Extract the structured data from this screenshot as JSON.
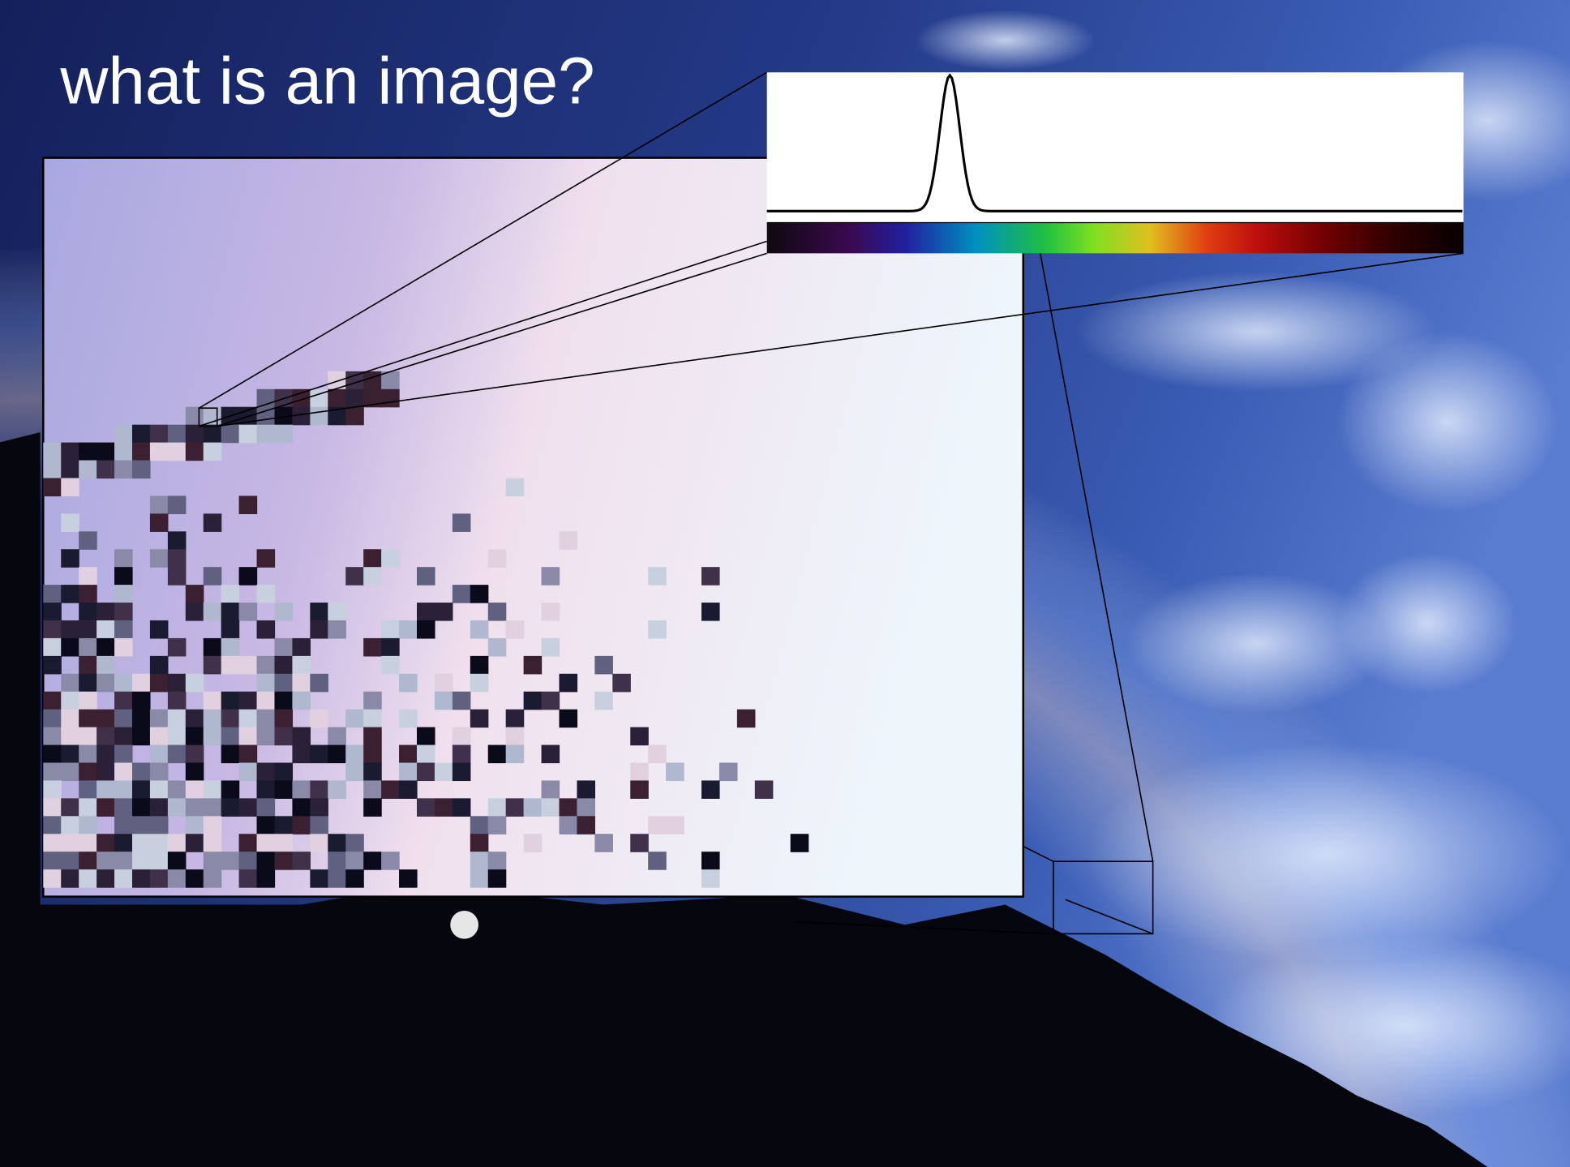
{
  "slide": {
    "title": "what is an image?"
  }
}
